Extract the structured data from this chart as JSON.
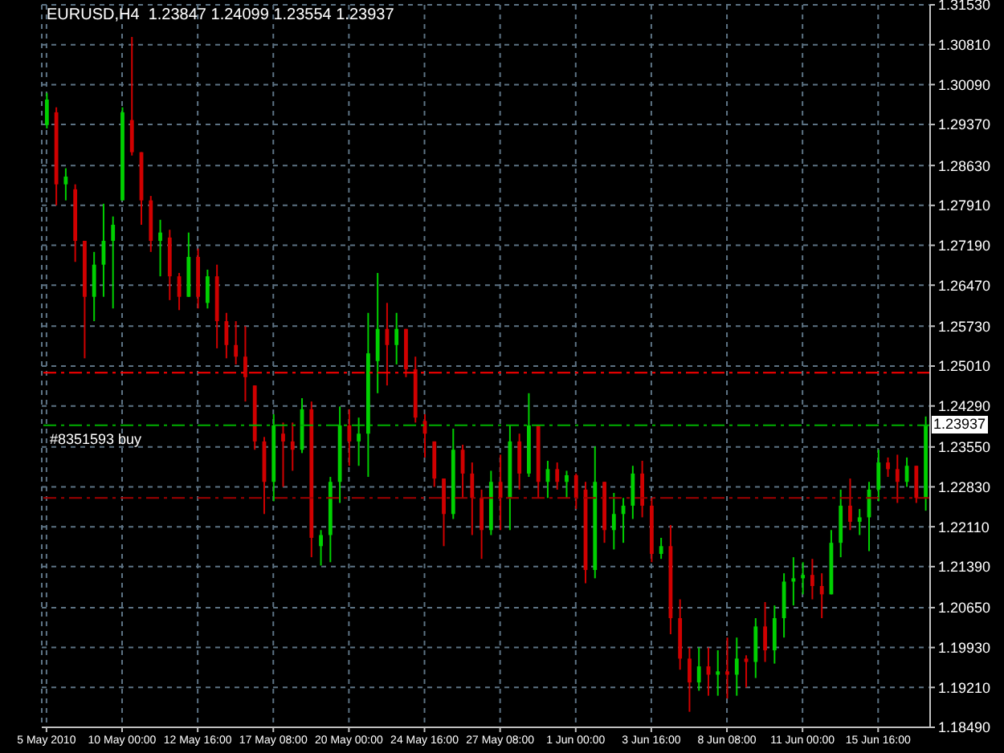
{
  "chart_data": {
    "type": "candlestick",
    "title": "EURUSD,H4  1.23847 1.24099 1.23554 1.23937",
    "categories": [
      "5 May 2010",
      null,
      null,
      null,
      null,
      null,
      null,
      null,
      "10 May 00:00",
      null,
      null,
      null,
      null,
      null,
      null,
      null,
      "12 May 16:00",
      null,
      null,
      null,
      null,
      null,
      null,
      null,
      "17 May 08:00",
      null,
      null,
      null,
      null,
      null,
      null,
      null,
      "20 May 00:00",
      null,
      null,
      null,
      null,
      null,
      null,
      null,
      "24 May 16:00",
      null,
      null,
      null,
      null,
      null,
      null,
      null,
      "27 May 08:00",
      null,
      null,
      null,
      null,
      null,
      null,
      null,
      "1 Jun 00:00",
      null,
      null,
      null,
      null,
      null,
      null,
      null,
      "3 Jun 16:00",
      null,
      null,
      null,
      null,
      null,
      null,
      null,
      "8 Jun 08:00",
      null,
      null,
      null,
      null,
      null,
      null,
      null,
      "11 Jun 00:00",
      null,
      null,
      null,
      null,
      null,
      null,
      null,
      "15 Jun 16:00",
      null,
      null,
      null,
      null,
      null
    ],
    "ohlc": [
      [
        1.2936,
        1.2994,
        1.293,
        1.2982
      ],
      [
        1.2959,
        1.2968,
        1.2791,
        1.2829
      ],
      [
        1.2829,
        1.2858,
        1.28,
        1.2843
      ],
      [
        1.282,
        1.2829,
        1.2689,
        1.2727
      ],
      [
        1.2727,
        1.2727,
        1.2515,
        1.2626
      ],
      [
        1.2626,
        1.2707,
        1.2582,
        1.2684
      ],
      [
        1.2684,
        1.2794,
        1.2626,
        1.2727
      ],
      [
        1.2727,
        1.2771,
        1.2605,
        1.2756
      ],
      [
        1.28,
        1.2968,
        1.28,
        1.2959
      ],
      [
        1.2945,
        1.3095,
        1.2881,
        1.2887
      ],
      [
        1.2887,
        1.2887,
        1.2756,
        1.28
      ],
      [
        1.28,
        1.2808,
        1.2707,
        1.2727
      ],
      [
        1.2727,
        1.2765,
        1.2663,
        1.2742
      ],
      [
        1.2733,
        1.2747,
        1.262,
        1.2663
      ],
      [
        1.2663,
        1.2669,
        1.2602,
        1.2626
      ],
      [
        1.2626,
        1.2742,
        1.2626,
        1.2698
      ],
      [
        1.2698,
        1.2713,
        1.2605,
        1.2626
      ],
      [
        1.2615,
        1.2675,
        1.2605,
        1.2663
      ],
      [
        1.2663,
        1.2684,
        1.2533,
        1.2582
      ],
      [
        1.2582,
        1.2597,
        1.2515,
        1.2539
      ],
      [
        1.2539,
        1.2582,
        1.2504,
        1.2518
      ],
      [
        1.2518,
        1.2573,
        1.2437,
        1.2481
      ],
      [
        1.2466,
        1.2466,
        1.235,
        1.2365
      ],
      [
        1.2365,
        1.2373,
        1.2234,
        1.2292
      ],
      [
        1.2292,
        1.2414,
        1.2257,
        1.2394
      ],
      [
        1.2379,
        1.2399,
        1.2283,
        1.2365
      ],
      [
        1.2365,
        1.2399,
        1.2312,
        1.235
      ],
      [
        1.235,
        1.2443,
        1.2344,
        1.2423
      ],
      [
        1.2423,
        1.2437,
        1.2156,
        1.2191
      ],
      [
        1.2176,
        1.2205,
        1.2141,
        1.2196
      ],
      [
        1.2196,
        1.2301,
        1.2147,
        1.2292
      ],
      [
        1.2292,
        1.2428,
        1.2254,
        1.2394
      ],
      [
        1.2394,
        1.2423,
        1.2321,
        1.2365
      ],
      [
        1.2365,
        1.2408,
        1.2321,
        1.2379
      ],
      [
        1.2379,
        1.2597,
        1.2301,
        1.2524
      ],
      [
        1.251,
        1.2669,
        1.2452,
        1.2568
      ],
      [
        1.2568,
        1.2615,
        1.2466,
        1.2539
      ],
      [
        1.2539,
        1.2597,
        1.2504,
        1.2568
      ],
      [
        1.2568,
        1.2568,
        1.2481,
        1.2495
      ],
      [
        1.2495,
        1.2518,
        1.2399,
        1.2408
      ],
      [
        1.2402,
        1.2414,
        1.2336,
        1.2379
      ],
      [
        1.2365,
        1.2365,
        1.2283,
        1.2298
      ],
      [
        1.2298,
        1.2298,
        1.2176,
        1.2234
      ],
      [
        1.2234,
        1.2388,
        1.2225,
        1.235
      ],
      [
        1.235,
        1.2359,
        1.2263,
        1.2307
      ],
      [
        1.2307,
        1.2327,
        1.2196,
        1.2263
      ],
      [
        1.2263,
        1.2278,
        1.2153,
        1.2205
      ],
      [
        1.2205,
        1.2312,
        1.2196,
        1.2292
      ],
      [
        1.2292,
        1.2341,
        1.2205,
        1.2263
      ],
      [
        1.2263,
        1.2394,
        1.2205,
        1.2365
      ],
      [
        1.2365,
        1.2379,
        1.2278,
        1.2307
      ],
      [
        1.2307,
        1.2452,
        1.2301,
        1.2394
      ],
      [
        1.2394,
        1.2394,
        1.2263,
        1.2292
      ],
      [
        1.2292,
        1.233,
        1.2263,
        1.2315
      ],
      [
        1.2315,
        1.2327,
        1.2278,
        1.2292
      ],
      [
        1.2292,
        1.2312,
        1.2263,
        1.2304
      ],
      [
        1.2304,
        1.2307,
        1.2243,
        1.2263
      ],
      [
        1.2278,
        1.2292,
        1.2109,
        1.2133
      ],
      [
        1.2133,
        1.2356,
        1.2118,
        1.2292
      ],
      [
        1.2292,
        1.2292,
        1.2182,
        1.2205
      ],
      [
        1.2205,
        1.2272,
        1.217,
        1.2234
      ],
      [
        1.2234,
        1.2263,
        1.2182,
        1.2249
      ],
      [
        1.2249,
        1.2321,
        1.2225,
        1.2307
      ],
      [
        1.2307,
        1.233,
        1.2228,
        1.2249
      ],
      [
        1.2249,
        1.2263,
        1.2147,
        1.2162
      ],
      [
        1.2162,
        1.2191,
        1.2153,
        1.2176
      ],
      [
        1.2176,
        1.2214,
        1.2017,
        1.2046
      ],
      [
        1.2046,
        1.208,
        1.1953,
        1.1973
      ],
      [
        1.1973,
        1.1993,
        1.1877,
        1.193
      ],
      [
        1.193,
        1.1993,
        1.1915,
        1.1959
      ],
      [
        1.1959,
        1.1993,
        1.1906,
        1.1944
      ],
      [
        1.1944,
        1.1988,
        1.1906,
        1.195
      ],
      [
        1.195,
        1.2011,
        1.1901,
        1.1944
      ],
      [
        1.1944,
        1.2011,
        1.1906,
        1.1973
      ],
      [
        1.1973,
        1.1979,
        1.1921,
        1.1967
      ],
      [
        1.1967,
        1.2046,
        1.1938,
        1.2031
      ],
      [
        1.2031,
        1.2075,
        1.1967,
        1.1988
      ],
      [
        1.1988,
        1.2069,
        1.1964,
        1.2046
      ],
      [
        1.2046,
        1.2127,
        1.2011,
        1.2112
      ],
      [
        1.2112,
        1.2156,
        1.2069,
        1.2118
      ],
      [
        1.2118,
        1.2147,
        1.2089,
        1.2124
      ],
      [
        1.2124,
        1.2153,
        1.208,
        1.2104
      ],
      [
        1.2104,
        1.2127,
        1.2046,
        1.2089
      ],
      [
        1.2089,
        1.2205,
        1.2089,
        1.2182
      ],
      [
        1.2182,
        1.2278,
        1.2156,
        1.2249
      ],
      [
        1.2249,
        1.2298,
        1.2205,
        1.222
      ],
      [
        1.222,
        1.2243,
        1.2196,
        1.2228
      ],
      [
        1.2228,
        1.2292,
        1.2167,
        1.2278
      ],
      [
        1.2278,
        1.235,
        1.2257,
        1.2327
      ],
      [
        1.2327,
        1.2336,
        1.2301,
        1.2315
      ],
      [
        1.2315,
        1.2341,
        1.2254,
        1.2292
      ],
      [
        1.2292,
        1.2336,
        1.2283,
        1.2321
      ],
      [
        1.2321,
        1.2321,
        1.2254,
        1.2263
      ],
      [
        1.2263,
        1.241,
        1.224,
        1.2394
      ]
    ],
    "colors": [
      "#00d000",
      "#d00000",
      "#00d000",
      "#d00000",
      "#d00000",
      "#00d000",
      "#00d000",
      "#00d000",
      "#00d000",
      "#d00000",
      "#d00000",
      "#d00000",
      "#00d000",
      "#d00000",
      "#d00000",
      "#00d000",
      "#d00000",
      "#00d000",
      "#d00000",
      "#d00000",
      "#d00000",
      "#d00000",
      "#d00000",
      "#d00000",
      "#00d000",
      "#d00000",
      "#d00000",
      "#00d000",
      "#d00000",
      "#00d000",
      "#00d000",
      "#00d000",
      "#d00000",
      "#00d000",
      "#00d000",
      "#00d000",
      "#d00000",
      "#00d000",
      "#d00000",
      "#d00000",
      "#d00000",
      "#d00000",
      "#d00000",
      "#00d000",
      "#d00000",
      "#d00000",
      "#d00000",
      "#00d000",
      "#d00000",
      "#00d000",
      "#d00000",
      "#00d000",
      "#d00000",
      "#00d000",
      "#d00000",
      "#00d000",
      "#d00000",
      "#d00000",
      "#00d000",
      "#d00000",
      "#00d000",
      "#00d000",
      "#00d000",
      "#d00000",
      "#d00000",
      "#00d000",
      "#d00000",
      "#d00000",
      "#d00000",
      "#00d000",
      "#d00000",
      "#00d000",
      "#d00000",
      "#00d000",
      "#d00000",
      "#00d000",
      "#d00000",
      "#00d000",
      "#00d000",
      "#00d000",
      "#00d000",
      "#d00000",
      "#d00000",
      "#00d000",
      "#00d000",
      "#d00000",
      "#00d000",
      "#00d000",
      "#00d000",
      "#d00000",
      "#d00000",
      "#00d000",
      "#d00000",
      "#00d000"
    ],
    "ylim": [
      1.1849,
      1.3153
    ],
    "yticks": [
      {
        "value": 1.1849,
        "label": "1.18490"
      },
      {
        "value": 1.1921,
        "label": "1.19210"
      },
      {
        "value": 1.1993,
        "label": "1.19930"
      },
      {
        "value": 1.2065,
        "label": "1.20650"
      },
      {
        "value": 1.2139,
        "label": "1.21390"
      },
      {
        "value": 1.2211,
        "label": "1.22110"
      },
      {
        "value": 1.2283,
        "label": "1.22830"
      },
      {
        "value": 1.2355,
        "label": "1.23550"
      },
      {
        "value": 1.2429,
        "label": "1.24290"
      },
      {
        "value": 1.2501,
        "label": "1.25010"
      },
      {
        "value": 1.2573,
        "label": "1.25730"
      },
      {
        "value": 1.2647,
        "label": "1.26470"
      },
      {
        "value": 1.2719,
        "label": "1.27190"
      },
      {
        "value": 1.2791,
        "label": "1.27910"
      },
      {
        "value": 1.2863,
        "label": "1.28630"
      },
      {
        "value": 1.2937,
        "label": "1.29370"
      },
      {
        "value": 1.3009,
        "label": "1.30090"
      },
      {
        "value": 1.3081,
        "label": "1.30810"
      },
      {
        "value": 1.3153,
        "label": "1.31530"
      }
    ],
    "grid": true,
    "ref_lines": [
      {
        "axis": "y",
        "value": 1.2489,
        "color": "#ff0000",
        "line_style": "dashed"
      },
      {
        "axis": "y",
        "value": 1.2394,
        "label": "#8351593 buy",
        "color": "#00b000",
        "line_style": "dashed"
      },
      {
        "axis": "y",
        "value": 1.2263,
        "color": "#a00000",
        "line_style": "dashed"
      }
    ],
    "annotations": [
      {
        "text": "1.23937",
        "y": 1.23937
      }
    ]
  }
}
